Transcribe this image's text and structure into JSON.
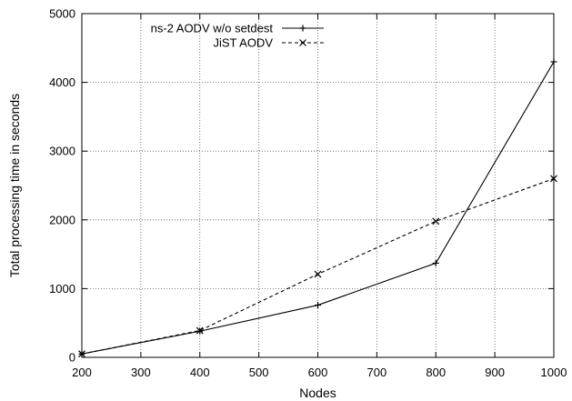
{
  "chart_data": {
    "type": "line",
    "title": "",
    "xlabel": "Nodes",
    "ylabel": "Total processing time in seconds",
    "xlim": [
      200,
      1000
    ],
    "ylim": [
      0,
      5000
    ],
    "x_ticks": [
      200,
      300,
      400,
      500,
      600,
      700,
      800,
      900,
      1000
    ],
    "y_ticks": [
      0,
      1000,
      2000,
      3000,
      4000,
      5000
    ],
    "grid": true,
    "legend_position": "top-left",
    "series": [
      {
        "name": "ns-2 AODV w/o setdest",
        "line_style": "solid",
        "marker": "plus",
        "color": "#000000",
        "x": [
          200,
          400,
          600,
          800,
          1000
        ],
        "y": [
          50,
          380,
          760,
          1370,
          4300
        ]
      },
      {
        "name": "JiST AODV",
        "line_style": "dashed",
        "marker": "cross",
        "color": "#000000",
        "x": [
          200,
          400,
          600,
          800,
          1000
        ],
        "y": [
          50,
          390,
          1210,
          1980,
          2600
        ]
      }
    ]
  }
}
